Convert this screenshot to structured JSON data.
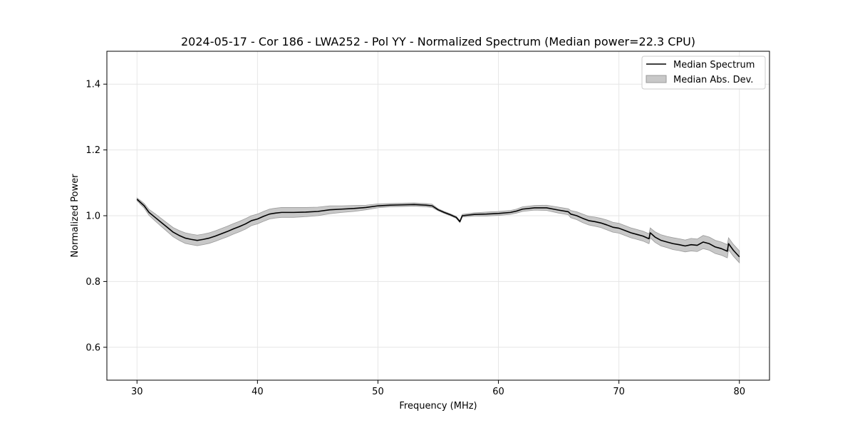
{
  "chart_data": {
    "type": "area",
    "title": "2024-05-17 - Cor 186 - LWA252 - Pol YY - Normalized Spectrum (Median power=22.3 CPU)",
    "xlabel": "Frequency (MHz)",
    "ylabel": "Normalized Power",
    "xlim": [
      27.5,
      82.5
    ],
    "ylim": [
      0.5,
      1.5
    ],
    "xticks": [
      30,
      40,
      50,
      60,
      70,
      80
    ],
    "xtick_labels": [
      "30",
      "40",
      "50",
      "60",
      "70",
      "80"
    ],
    "yticks": [
      0.6,
      0.8,
      1.0,
      1.2,
      1.4
    ],
    "ytick_labels": [
      "0.6",
      "0.8",
      "1.0",
      "1.2",
      "1.4"
    ],
    "grid": true,
    "legend_position": "top-right",
    "colors": {
      "median": "#000000",
      "mad_fill": "#c8c8c8",
      "mad_edge": "#9a9a9a",
      "grid": "#e6e6e6"
    },
    "series": [
      {
        "name": "Median Spectrum",
        "x": [
          30,
          30.3,
          30.6,
          31,
          31.5,
          32,
          32.5,
          33,
          33.5,
          34,
          34.5,
          35,
          35.5,
          36,
          36.5,
          37,
          37.5,
          38,
          38.5,
          39,
          39.5,
          40,
          40.5,
          41,
          41.5,
          42,
          43,
          44,
          45,
          46,
          47,
          48,
          49,
          50,
          51,
          52,
          53,
          54,
          54.5,
          55,
          55.5,
          56,
          56.5,
          56.8,
          57,
          58,
          59,
          60,
          61,
          61.5,
          62,
          63,
          64,
          65,
          65.8,
          66,
          66.5,
          67,
          67.5,
          68,
          68.5,
          69,
          69.5,
          70,
          70.5,
          71,
          71.5,
          72,
          72.5,
          72.6,
          73,
          73.5,
          74,
          74.5,
          75,
          75.5,
          76,
          76.5,
          77,
          77.5,
          78,
          78.5,
          79,
          79.1,
          79.5,
          80
        ],
        "y": [
          1.05,
          1.04,
          1.03,
          1.01,
          0.995,
          0.98,
          0.965,
          0.95,
          0.94,
          0.932,
          0.928,
          0.925,
          0.928,
          0.932,
          0.938,
          0.945,
          0.952,
          0.96,
          0.967,
          0.975,
          0.985,
          0.99,
          0.998,
          1.005,
          1.008,
          1.01,
          1.01,
          1.011,
          1.013,
          1.018,
          1.02,
          1.022,
          1.025,
          1.03,
          1.032,
          1.033,
          1.034,
          1.032,
          1.03,
          1.018,
          1.01,
          1.003,
          0.995,
          0.982,
          1.0,
          1.004,
          1.005,
          1.007,
          1.01,
          1.014,
          1.02,
          1.024,
          1.024,
          1.017,
          1.012,
          1.005,
          1.0,
          0.992,
          0.985,
          0.982,
          0.978,
          0.972,
          0.965,
          0.962,
          0.955,
          0.948,
          0.943,
          0.938,
          0.93,
          0.948,
          0.935,
          0.925,
          0.92,
          0.915,
          0.912,
          0.908,
          0.912,
          0.91,
          0.92,
          0.915,
          0.905,
          0.9,
          0.892,
          0.915,
          0.895,
          0.875
        ]
      },
      {
        "name": "Median Abs. Dev.",
        "x": [
          30,
          30.3,
          30.6,
          31,
          31.5,
          32,
          32.5,
          33,
          33.5,
          34,
          34.5,
          35,
          35.5,
          36,
          36.5,
          37,
          37.5,
          38,
          38.5,
          39,
          39.5,
          40,
          40.5,
          41,
          41.5,
          42,
          43,
          44,
          45,
          46,
          47,
          48,
          49,
          50,
          51,
          52,
          53,
          54,
          54.5,
          55,
          55.5,
          56,
          56.5,
          56.8,
          57,
          58,
          59,
          60,
          61,
          61.5,
          62,
          63,
          64,
          65,
          65.8,
          66,
          66.5,
          67,
          67.5,
          68,
          68.5,
          69,
          69.5,
          70,
          70.5,
          71,
          71.5,
          72,
          72.5,
          72.6,
          73,
          73.5,
          74,
          74.5,
          75,
          75.5,
          76,
          76.5,
          77,
          77.5,
          78,
          78.5,
          79,
          79.1,
          79.5,
          80
        ],
        "upper": [
          1.054,
          1.046,
          1.037,
          1.019,
          1.006,
          0.992,
          0.978,
          0.964,
          0.955,
          0.948,
          0.944,
          0.941,
          0.944,
          0.948,
          0.954,
          0.961,
          0.968,
          0.976,
          0.983,
          0.991,
          1.0,
          1.005,
          1.013,
          1.02,
          1.023,
          1.025,
          1.025,
          1.025,
          1.026,
          1.03,
          1.03,
          1.031,
          1.032,
          1.036,
          1.037,
          1.038,
          1.039,
          1.037,
          1.035,
          1.021,
          1.013,
          1.006,
          0.998,
          0.985,
          1.004,
          1.009,
          1.011,
          1.013,
          1.016,
          1.02,
          1.027,
          1.031,
          1.032,
          1.026,
          1.021,
          1.016,
          1.012,
          1.005,
          0.998,
          0.996,
          0.992,
          0.987,
          0.98,
          0.977,
          0.97,
          0.963,
          0.958,
          0.953,
          0.945,
          0.963,
          0.951,
          0.942,
          0.937,
          0.933,
          0.93,
          0.926,
          0.931,
          0.929,
          0.94,
          0.935,
          0.925,
          0.92,
          0.912,
          0.933,
          0.913,
          0.893
        ],
        "lower": [
          1.046,
          1.034,
          1.023,
          1.001,
          0.984,
          0.968,
          0.952,
          0.936,
          0.925,
          0.916,
          0.912,
          0.909,
          0.912,
          0.916,
          0.922,
          0.929,
          0.936,
          0.944,
          0.951,
          0.959,
          0.97,
          0.975,
          0.983,
          0.99,
          0.993,
          0.995,
          0.995,
          0.997,
          1.0,
          1.006,
          1.01,
          1.013,
          1.018,
          1.024,
          1.027,
          1.028,
          1.029,
          1.027,
          1.025,
          1.015,
          1.007,
          1.0,
          0.992,
          0.979,
          0.996,
          0.999,
          0.999,
          1.001,
          1.004,
          1.008,
          1.013,
          1.017,
          1.016,
          1.008,
          1.003,
          0.994,
          0.988,
          0.979,
          0.972,
          0.968,
          0.964,
          0.957,
          0.95,
          0.947,
          0.94,
          0.933,
          0.928,
          0.923,
          0.915,
          0.933,
          0.919,
          0.908,
          0.903,
          0.897,
          0.894,
          0.89,
          0.893,
          0.891,
          0.9,
          0.895,
          0.885,
          0.88,
          0.872,
          0.897,
          0.877,
          0.857
        ]
      }
    ]
  }
}
